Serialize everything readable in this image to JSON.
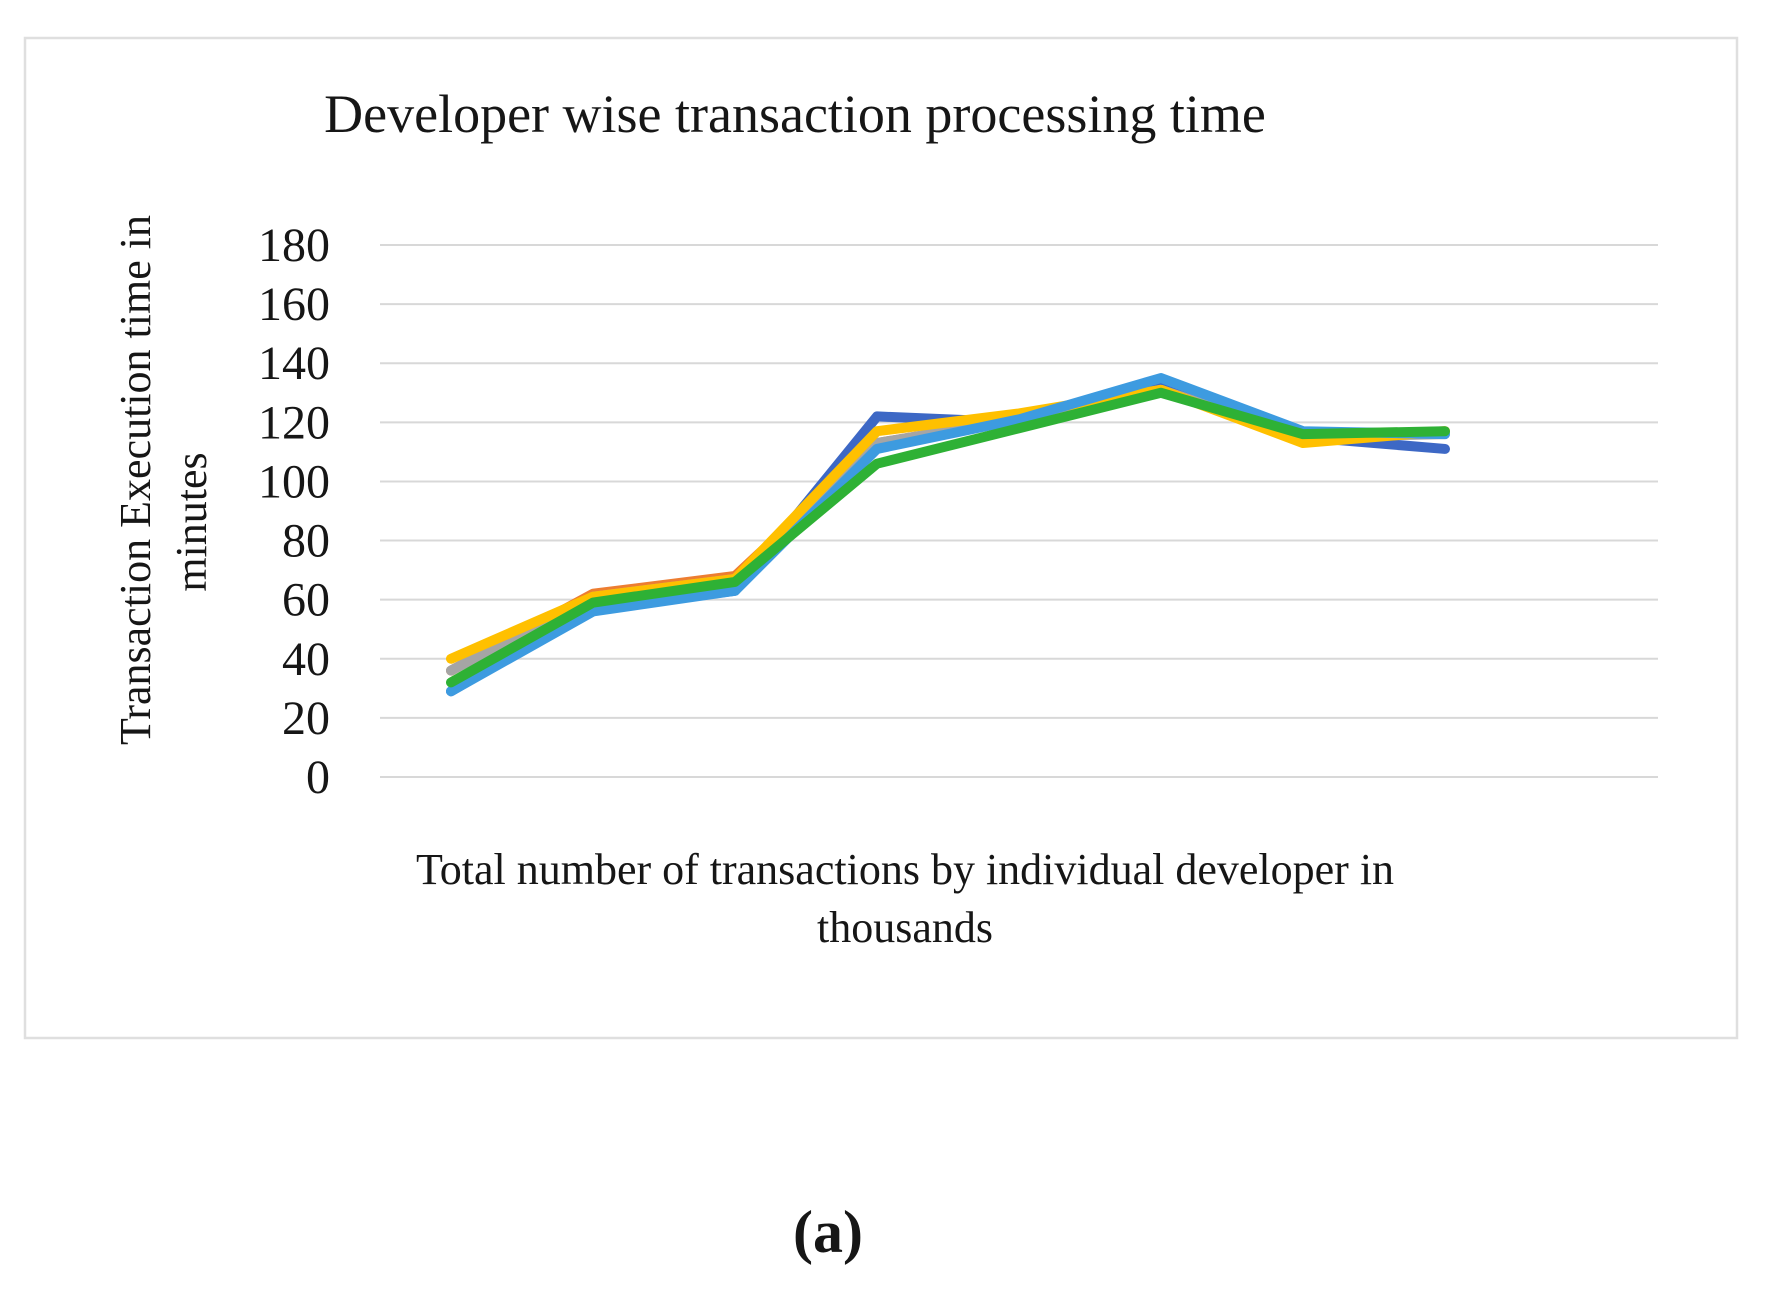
{
  "figure": {
    "caption": "(a)"
  },
  "chart_data": {
    "type": "line",
    "title": "Developer wise transaction processing time",
    "xlabel": "Total number of transactions by individual developer in thousands",
    "xlabel_line1": "Total number of transactions by individual developer in",
    "xlabel_line2": "thousands",
    "ylabel": "Transaction Execution time in minutes",
    "ylabel_line1": "Transaction Execution time in",
    "ylabel_line2": "minutes",
    "ylim": [
      0,
      180
    ],
    "yticks": [
      180,
      160,
      140,
      120,
      100,
      80,
      60,
      40,
      20,
      0
    ],
    "x_tick_labels": [],
    "grid": "horizontal",
    "legend_position": "none",
    "series": [
      {
        "name": "series-dark-blue",
        "color": "#3D68C5",
        "values": [
          29,
          57,
          63,
          122,
          120,
          132,
          115,
          111
        ]
      },
      {
        "name": "series-orange",
        "color": "#ED7D31",
        "values": [
          36,
          62,
          68,
          113,
          121,
          131,
          115,
          117
        ]
      },
      {
        "name": "series-gray",
        "color": "#A5A5A5",
        "values": [
          36,
          61,
          67,
          113,
          121,
          131,
          115,
          116
        ]
      },
      {
        "name": "series-yellow",
        "color": "#FFC000",
        "values": [
          40,
          61,
          67,
          117,
          123,
          131,
          113,
          117
        ]
      },
      {
        "name": "series-light-blue",
        "color": "#3D9BE0",
        "values": [
          29,
          56,
          63,
          111,
          121,
          135,
          117,
          116
        ]
      },
      {
        "name": "series-green",
        "color": "#2EB135",
        "values": [
          32,
          59,
          66,
          106,
          118,
          130,
          116,
          117
        ]
      }
    ],
    "colors": {
      "gridline": "#D8D8D8",
      "chart_border": "#DFDFDF",
      "text": "#161616",
      "background": "#FFFFFF"
    }
  }
}
